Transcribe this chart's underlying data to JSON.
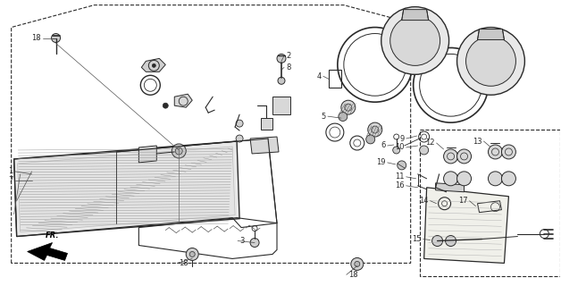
{
  "bg_color": "#ffffff",
  "line_color": "#2a2a2a",
  "fig_width": 6.28,
  "fig_height": 3.2,
  "dpi": 100
}
